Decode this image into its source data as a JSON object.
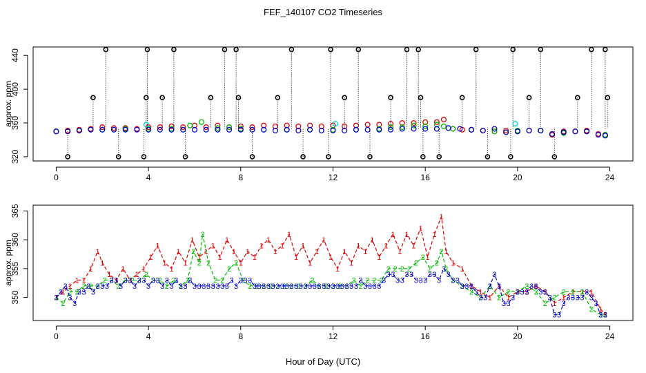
{
  "figure": {
    "title": "FEF_140107  CO2 Timeseries",
    "xlabel": "Hour of Day (UTC)"
  },
  "colors": {
    "axis": "#000000",
    "series_1": "#dd0000",
    "series_2": "#00bb00",
    "series_3": "#0000cc",
    "flag": "#000000",
    "cyan": "#00cccc"
  },
  "chart_data": [
    {
      "type": "scatter",
      "panel": "top",
      "title": "",
      "xlabel": "",
      "ylabel": "approx. ppm",
      "xlim": [
        -1,
        25
      ],
      "ylim": [
        315,
        450
      ],
      "xticks": [
        0,
        4,
        8,
        12,
        16,
        20,
        24
      ],
      "yticks": [
        320,
        360,
        400,
        440
      ],
      "series": [
        {
          "name": "1",
          "color": "#dd0000",
          "x": [
            0.0,
            0.5,
            1.0,
            1.5,
            2.0,
            2.5,
            3.0,
            3.5,
            4.0,
            4.5,
            5.0,
            5.5,
            6.0,
            6.5,
            7.0,
            7.5,
            8.0,
            8.5,
            9.0,
            9.5,
            10.0,
            10.5,
            11.0,
            11.5,
            12.0,
            12.5,
            13.0,
            13.5,
            14.0,
            14.5,
            15.0,
            15.5,
            16.0,
            16.5,
            16.8,
            17.2,
            17.6,
            18.0,
            18.5,
            19.0,
            19.5,
            20.0,
            20.5,
            21.0,
            21.5,
            22.0,
            22.5,
            23.0,
            23.5,
            23.8
          ],
          "y": [
            350,
            351,
            352,
            353,
            355,
            354,
            354,
            353,
            355,
            355,
            356,
            355,
            357,
            355,
            357,
            355,
            356,
            355,
            357,
            356,
            357,
            356,
            357,
            356,
            357,
            356,
            357,
            358,
            358,
            359,
            360,
            360,
            361,
            361,
            364,
            353,
            352,
            352,
            351,
            350,
            351,
            350,
            351,
            351,
            346,
            350,
            350,
            351,
            347,
            346
          ]
        },
        {
          "name": "2",
          "color": "#00bb00",
          "x": [
            0.0,
            1.0,
            2.0,
            3.0,
            4.0,
            5.0,
            5.8,
            6.3,
            7.0,
            7.5,
            8.0,
            9.0,
            10.0,
            11.0,
            12.0,
            13.0,
            14.0,
            14.5,
            15.0,
            15.5,
            16.0,
            16.5,
            16.8,
            17.2,
            18.0,
            19.0,
            20.0,
            21.0,
            22.0,
            23.0,
            23.8
          ],
          "y": [
            350,
            351,
            352,
            353,
            353,
            353,
            357,
            361,
            354,
            355,
            353,
            352,
            352,
            352,
            352,
            352,
            353,
            355,
            355,
            357,
            356,
            358,
            356,
            353,
            352,
            350,
            351,
            351,
            348,
            350,
            346
          ]
        },
        {
          "name": "3",
          "color": "#0000cc",
          "x": [
            0.0,
            0.5,
            1.0,
            1.5,
            2.0,
            2.5,
            3.0,
            3.5,
            4.0,
            4.5,
            5.0,
            5.5,
            6.0,
            6.5,
            7.0,
            7.5,
            8.0,
            8.5,
            9.0,
            9.5,
            10.0,
            10.5,
            11.0,
            11.5,
            12.0,
            12.5,
            13.0,
            13.5,
            14.0,
            14.5,
            15.0,
            15.5,
            16.0,
            16.5,
            17.0,
            17.5,
            18.0,
            18.5,
            19.0,
            19.5,
            20.0,
            20.5,
            21.0,
            21.5,
            22.0,
            22.5,
            23.0,
            23.5,
            23.8
          ],
          "y": [
            350,
            350,
            351,
            352,
            352,
            352,
            352,
            352,
            352,
            352,
            352,
            352,
            352,
            352,
            352,
            352,
            352,
            352,
            352,
            351,
            352,
            351,
            352,
            351,
            351,
            351,
            352,
            352,
            352,
            352,
            353,
            353,
            353,
            353,
            354,
            353,
            352,
            351,
            353,
            349,
            350,
            351,
            351,
            347,
            349,
            350,
            350,
            346,
            345
          ]
        },
        {
          "name": "flag",
          "color": "#000000",
          "x": [
            0.5,
            1.6,
            2.15,
            2.7,
            3.8,
            3.9,
            3.95,
            4.6,
            5.1,
            5.6,
            6.7,
            7.3,
            7.8,
            7.9,
            8.5,
            9.6,
            10.2,
            10.7,
            11.8,
            11.9,
            12.5,
            13.1,
            13.6,
            14.5,
            15.2,
            15.7,
            15.8,
            15.9,
            16.6,
            17.6,
            18.2,
            18.7,
            19.7,
            19.8,
            20.5,
            21.0,
            21.6,
            22.6,
            23.2,
            23.8,
            23.9
          ],
          "y": [
            320,
            390,
            447,
            320,
            320,
            390,
            447,
            390,
            447,
            320,
            390,
            447,
            447,
            390,
            320,
            390,
            447,
            320,
            320,
            447,
            390,
            447,
            320,
            390,
            447,
            447,
            390,
            320,
            320,
            390,
            447,
            320,
            320,
            447,
            390,
            447,
            320,
            390,
            447,
            447,
            390
          ]
        },
        {
          "name": "cyan",
          "color": "#00cccc",
          "x": [
            3.9,
            12.1,
            19.9
          ],
          "y": [
            358,
            359,
            359
          ]
        }
      ]
    },
    {
      "type": "scatter",
      "panel": "bottom",
      "title": "",
      "xlabel": "Hour of Day (UTC)",
      "ylabel": "approx. ppm",
      "xlim": [
        -1,
        25
      ],
      "ylim": [
        346,
        366
      ],
      "xticks": [
        0,
        4,
        8,
        12,
        16,
        20,
        24
      ],
      "yticks": [
        350,
        355,
        360,
        365
      ],
      "series": [
        {
          "name": "1",
          "label": "1",
          "color": "#dd0000",
          "x": [
            0.0,
            0.3,
            0.6,
            0.9,
            1.2,
            1.5,
            1.8,
            2.0,
            2.3,
            2.6,
            2.9,
            3.2,
            3.5,
            3.8,
            4.1,
            4.4,
            4.7,
            5.0,
            5.3,
            5.6,
            5.9,
            6.2,
            6.5,
            6.8,
            7.1,
            7.4,
            7.7,
            8.0,
            8.3,
            8.6,
            8.9,
            9.2,
            9.5,
            9.8,
            10.1,
            10.4,
            10.7,
            11.0,
            11.3,
            11.6,
            11.9,
            12.2,
            12.5,
            12.8,
            13.1,
            13.4,
            13.7,
            14.0,
            14.3,
            14.6,
            14.9,
            15.2,
            15.5,
            15.8,
            16.1,
            16.4,
            16.7,
            16.9,
            17.2,
            17.6,
            18.0,
            18.4,
            18.8,
            19.2,
            19.6,
            20.0,
            20.4,
            20.8,
            21.2,
            21.6,
            22.0,
            22.4,
            22.8,
            23.2,
            23.6,
            23.8
          ],
          "y": [
            350,
            351,
            352,
            353,
            353,
            355,
            358,
            356,
            354,
            353,
            355,
            353,
            354,
            355,
            357,
            359,
            356,
            355,
            358,
            356,
            360,
            357,
            358,
            359,
            357,
            360,
            358,
            356,
            358,
            357,
            359,
            360,
            358,
            359,
            361,
            357,
            359,
            356,
            358,
            360,
            357,
            355,
            358,
            356,
            359,
            358,
            360,
            357,
            359,
            361,
            358,
            361,
            359,
            362,
            357,
            361,
            364,
            358,
            356,
            355,
            352,
            351,
            350,
            352,
            350,
            351,
            351,
            352,
            351,
            349,
            350,
            351,
            351,
            351,
            348,
            347
          ]
        },
        {
          "name": "2",
          "label": "2",
          "color": "#00bb00",
          "x": [
            0.0,
            0.3,
            0.6,
            0.9,
            1.2,
            1.5,
            1.8,
            2.1,
            2.4,
            2.7,
            3.0,
            3.3,
            3.6,
            3.9,
            4.2,
            4.5,
            4.8,
            5.1,
            5.4,
            5.7,
            5.95,
            6.2,
            6.35,
            6.6,
            6.9,
            7.2,
            7.5,
            7.8,
            8.1,
            8.4,
            8.7,
            9.0,
            9.3,
            9.6,
            9.9,
            10.2,
            10.5,
            10.8,
            11.1,
            11.4,
            11.7,
            12.0,
            12.3,
            12.6,
            12.9,
            13.2,
            13.5,
            13.8,
            14.1,
            14.4,
            14.7,
            15.0,
            15.3,
            15.6,
            15.9,
            16.2,
            16.5,
            16.7,
            16.9,
            17.2,
            17.6,
            18.0,
            18.4,
            18.8,
            19.2,
            19.6,
            20.0,
            20.4,
            20.8,
            21.2,
            21.6,
            22.0,
            22.4,
            22.8,
            23.2,
            23.6,
            23.8
          ],
          "y": [
            350,
            349,
            351,
            351,
            352,
            352,
            352,
            353,
            353,
            352,
            353,
            353,
            353,
            354,
            353,
            353,
            352,
            353,
            352,
            353,
            358,
            356,
            361,
            356,
            353,
            353,
            355,
            356,
            353,
            352,
            352,
            352,
            352,
            352,
            352,
            352,
            352,
            352,
            353,
            352,
            352,
            352,
            352,
            352,
            353,
            352,
            353,
            353,
            353,
            355,
            355,
            355,
            355,
            356,
            357,
            355,
            356,
            358,
            355,
            353,
            352,
            351,
            350,
            352,
            350,
            351,
            351,
            352,
            351,
            349,
            350,
            351,
            351,
            351,
            348,
            347,
            347
          ]
        },
        {
          "name": "3",
          "label": "3",
          "color": "#0000cc",
          "x": [
            0.0,
            0.2,
            0.4,
            0.6,
            0.8,
            1.0,
            1.2,
            1.4,
            1.6,
            1.8,
            2.0,
            2.2,
            2.4,
            2.6,
            2.8,
            3.0,
            3.2,
            3.4,
            3.6,
            3.8,
            4.0,
            4.2,
            4.4,
            4.6,
            4.8,
            5.0,
            5.2,
            5.4,
            5.6,
            5.8,
            6.0,
            6.2,
            6.4,
            6.6,
            6.8,
            7.0,
            7.2,
            7.4,
            7.6,
            7.8,
            8.0,
            8.2,
            8.4,
            8.6,
            8.8,
            9.0,
            9.2,
            9.4,
            9.6,
            9.8,
            10.0,
            10.2,
            10.4,
            10.6,
            10.8,
            11.0,
            11.2,
            11.4,
            11.6,
            11.8,
            12.0,
            12.2,
            12.4,
            12.6,
            12.8,
            13.0,
            13.2,
            13.4,
            13.6,
            13.8,
            14.0,
            14.2,
            14.4,
            14.6,
            14.8,
            15.0,
            15.2,
            15.4,
            15.6,
            15.8,
            16.0,
            16.2,
            16.4,
            16.6,
            16.8,
            17.0,
            17.2,
            17.4,
            17.6,
            17.8,
            18.0,
            18.2,
            18.4,
            18.6,
            18.8,
            19.0,
            19.2,
            19.4,
            19.6,
            19.8,
            20.0,
            20.2,
            20.4,
            20.6,
            20.8,
            21.0,
            21.2,
            21.4,
            21.6,
            21.8,
            22.0,
            22.2,
            22.4,
            22.6,
            22.8,
            23.0,
            23.2,
            23.4,
            23.6,
            23.8
          ],
          "y": [
            350,
            351,
            352,
            350,
            349,
            351,
            351,
            352,
            351,
            352,
            352,
            352,
            353,
            353,
            352,
            353,
            353,
            352,
            353,
            353,
            352,
            353,
            353,
            352,
            353,
            352,
            353,
            352,
            352,
            353,
            352,
            352,
            352,
            352,
            352,
            352,
            352,
            352,
            353,
            352,
            353,
            353,
            353,
            352,
            352,
            352,
            352,
            352,
            352,
            352,
            352,
            352,
            352,
            352,
            352,
            352,
            352,
            352,
            352,
            352,
            352,
            352,
            352,
            352,
            352,
            352,
            353,
            352,
            352,
            352,
            352,
            353,
            354,
            354,
            353,
            353,
            354,
            354,
            353,
            353,
            353,
            354,
            354,
            353,
            355,
            354,
            353,
            353,
            352,
            352,
            352,
            351,
            350,
            350,
            352,
            354,
            352,
            349,
            349,
            350,
            351,
            351,
            351,
            352,
            352,
            351,
            351,
            350,
            347,
            347,
            349,
            350,
            350,
            350,
            350,
            351,
            350,
            349,
            347,
            347
          ]
        }
      ]
    }
  ]
}
